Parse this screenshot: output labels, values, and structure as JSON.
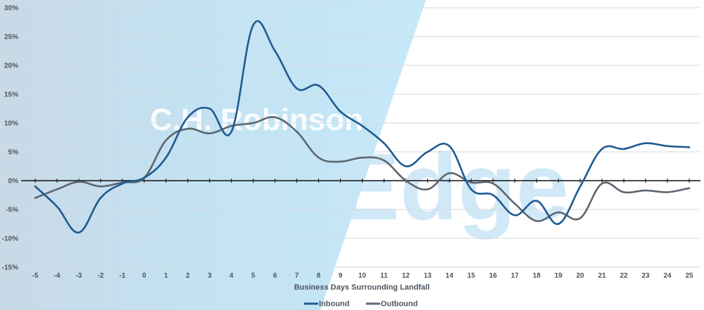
{
  "chart_data": {
    "type": "line",
    "title": "",
    "xlabel": "Business Days Surrounding Landfall",
    "ylabel": "",
    "x": [
      -5,
      -4,
      -3,
      -2,
      -1,
      0,
      1,
      2,
      3,
      4,
      5,
      6,
      7,
      8,
      9,
      10,
      11,
      12,
      13,
      14,
      15,
      16,
      17,
      18,
      19,
      20,
      21,
      22,
      23,
      24,
      25
    ],
    "x_ticks": [
      "-5",
      "-4",
      "-3",
      "-2",
      "-1",
      "0",
      "1",
      "2",
      "3",
      "4",
      "5",
      "6",
      "7",
      "8",
      "9",
      "10",
      "11",
      "12",
      "13",
      "14",
      "15",
      "16",
      "17",
      "18",
      "19",
      "20",
      "21",
      "22",
      "23",
      "24",
      "25"
    ],
    "ylim": [
      -15,
      30
    ],
    "y_ticks": [
      -15,
      -10,
      -5,
      0,
      5,
      10,
      15,
      20,
      25,
      30
    ],
    "y_tick_labels": [
      "-15%",
      "-10%",
      "-5%",
      "0%",
      "5%",
      "10%",
      "15%",
      "20%",
      "25%",
      "30%"
    ],
    "grid": true,
    "legend_position": "bottom-center",
    "series": [
      {
        "name": "Inbound",
        "color": "#1f5a91",
        "values": [
          -1,
          -4.5,
          -9,
          -3,
          -0.5,
          0.5,
          4,
          11,
          12.5,
          8.5,
          27,
          22.5,
          16,
          16.5,
          12,
          9.5,
          6.5,
          2.5,
          5,
          6,
          -1.5,
          -2.5,
          -6,
          -3.5,
          -7.5,
          -1,
          5.5,
          5.5,
          6.5,
          6,
          5.8
        ]
      },
      {
        "name": "Outbound",
        "color": "#5d6670",
        "values": [
          -3,
          -1.5,
          -0.2,
          -1,
          -0.3,
          0.5,
          7,
          9,
          8.2,
          9.5,
          10,
          11,
          8.5,
          4,
          3.3,
          4,
          3.5,
          0,
          -1.5,
          1.3,
          -0.3,
          -0.5,
          -4,
          -7,
          -5.5,
          -6.5,
          -0.5,
          -2,
          -1.7,
          -2,
          -1.3
        ]
      }
    ]
  },
  "watermark": {
    "brand": "C.H. Robinson",
    "product": "Edge",
    "color": "#cbe7f5"
  }
}
